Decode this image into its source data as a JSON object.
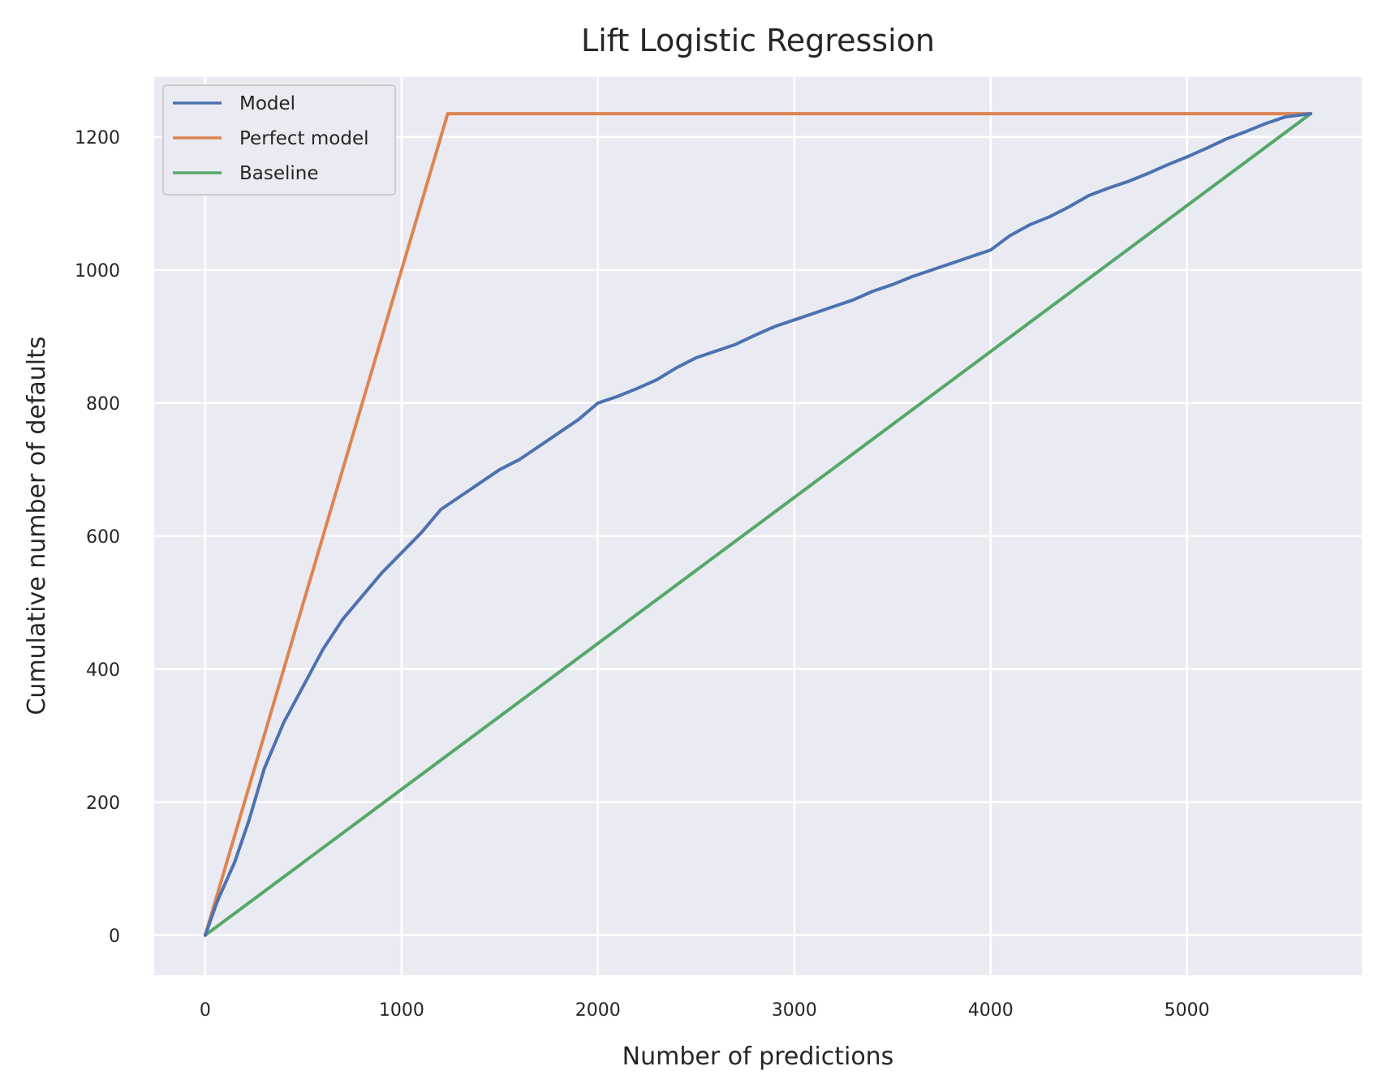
{
  "chart_data": {
    "type": "line",
    "title": "Lift Logistic Regression",
    "xlabel": "Number of predictions",
    "ylabel": "Cumulative number of defaults",
    "xlim": [
      -260,
      5890
    ],
    "ylim": [
      -60,
      1290
    ],
    "xticks": [
      0,
      1000,
      2000,
      3000,
      4000,
      5000
    ],
    "yticks": [
      0,
      200,
      400,
      600,
      800,
      1000,
      1200
    ],
    "grid": true,
    "background": "#eaeaf2",
    "legend_position": "top-left",
    "series": [
      {
        "name": "Model",
        "color": "#4c72b0",
        "x": [
          0,
          60,
          150,
          220,
          300,
          400,
          500,
          600,
          700,
          800,
          900,
          1000,
          1100,
          1200,
          1300,
          1400,
          1500,
          1600,
          1700,
          1800,
          1900,
          2000,
          2100,
          2200,
          2300,
          2400,
          2500,
          2600,
          2700,
          2800,
          2900,
          3000,
          3100,
          3200,
          3300,
          3400,
          3500,
          3600,
          3700,
          3800,
          3900,
          4000,
          4100,
          4200,
          4300,
          4400,
          4500,
          4600,
          4700,
          4800,
          4900,
          5000,
          5100,
          5200,
          5300,
          5400,
          5500,
          5630
        ],
        "y": [
          0,
          50,
          110,
          170,
          250,
          320,
          375,
          430,
          475,
          510,
          545,
          575,
          605,
          640,
          660,
          680,
          700,
          715,
          735,
          755,
          775,
          800,
          810,
          822,
          835,
          853,
          868,
          878,
          888,
          902,
          915,
          925,
          935,
          945,
          955,
          968,
          978,
          990,
          1000,
          1010,
          1020,
          1030,
          1052,
          1068,
          1080,
          1095,
          1112,
          1123,
          1133,
          1145,
          1158,
          1170,
          1183,
          1197,
          1208,
          1220,
          1230,
          1235
        ]
      },
      {
        "name": "Perfect model",
        "color": "#dd8452",
        "x": [
          0,
          1235,
          5630
        ],
        "y": [
          0,
          1235,
          1235
        ]
      },
      {
        "name": "Baseline",
        "color": "#55a868",
        "x": [
          0,
          5630
        ],
        "y": [
          0,
          1235
        ]
      }
    ]
  }
}
